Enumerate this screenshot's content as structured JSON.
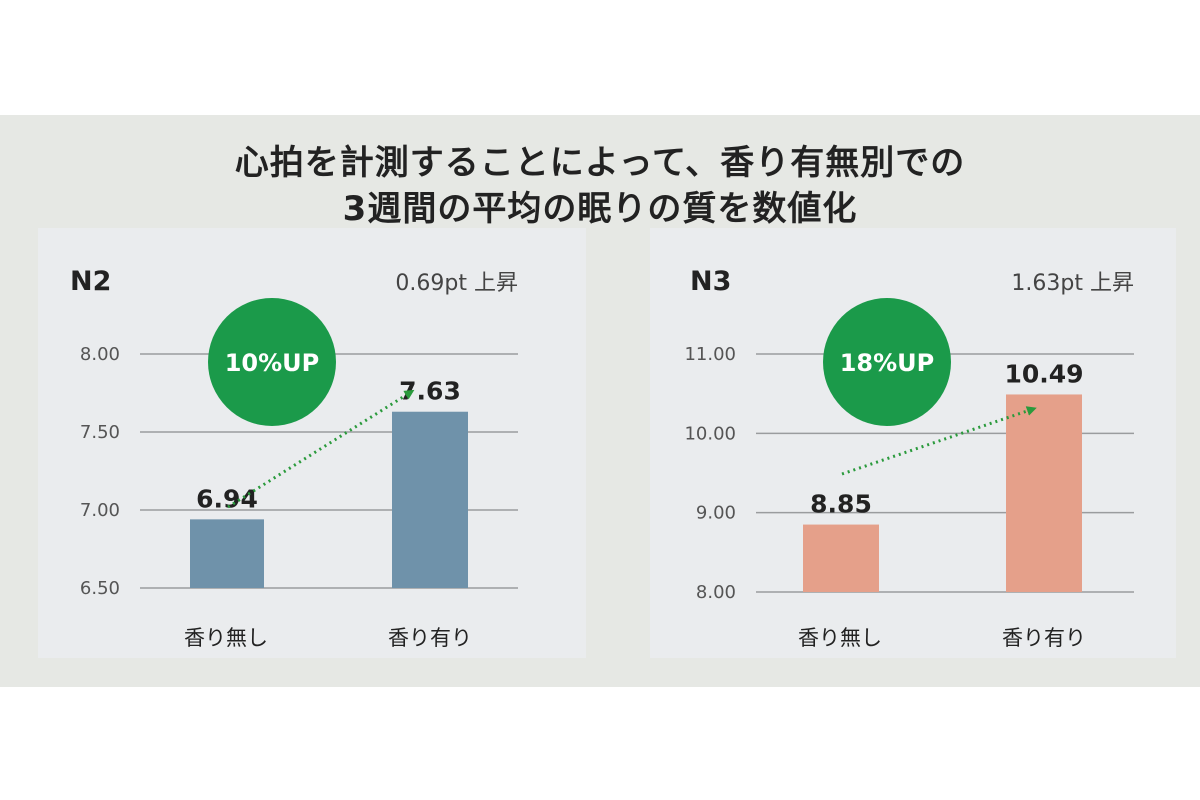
{
  "title_lines": [
    "心拍を計測することによって、香り有無別での",
    "3週間の平均の眠りの質を数値化"
  ],
  "chart_data": [
    {
      "type": "bar",
      "title": "N2",
      "subtitle": "0.69pt 上昇",
      "badge": "10%UP",
      "categories": [
        "香り無し",
        "香り有り"
      ],
      "values": [
        6.94,
        7.63
      ],
      "value_labels": [
        "6.94",
        "7.63"
      ],
      "yticks": [
        "6.50",
        "7.00",
        "7.50",
        "8.00"
      ],
      "ylim": [
        6.5,
        8.0
      ],
      "bar_color": "#6f92aa",
      "badge_color": "#1b9a4a",
      "arrow_color": "#2a9a3c",
      "grid": true
    },
    {
      "type": "bar",
      "title": "N3",
      "subtitle": "1.63pt 上昇",
      "badge": "18%UP",
      "categories": [
        "香り無し",
        "香り有り"
      ],
      "values": [
        8.85,
        10.49
      ],
      "value_labels": [
        "8.85",
        "10.49"
      ],
      "yticks": [
        "8.00",
        "9.00",
        "10.00",
        "11.00"
      ],
      "ylim": [
        8.0,
        11.0
      ],
      "bar_color": "#e5a08a",
      "badge_color": "#1b9a4a",
      "arrow_color": "#2a9a3c",
      "grid": true
    }
  ]
}
